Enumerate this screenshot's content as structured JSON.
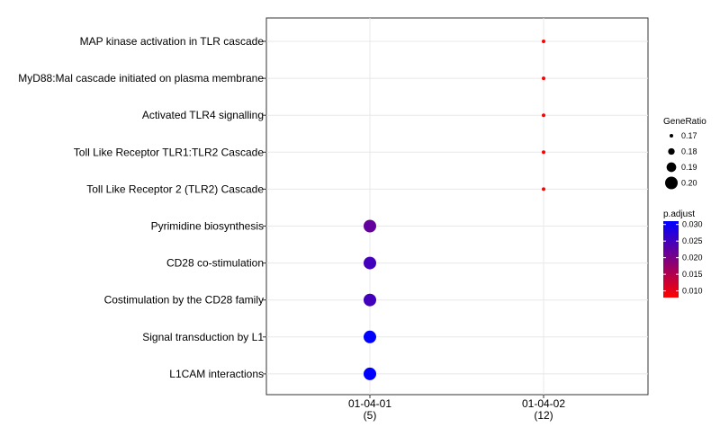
{
  "chart_data": {
    "type": "scatter",
    "title": "",
    "xlabel": "",
    "ylabel": "",
    "x_categories": [
      {
        "label": "01-04-01",
        "count": "(5)"
      },
      {
        "label": "01-04-02",
        "count": "(12)"
      }
    ],
    "y_categories": [
      "MAP kinase activation in TLR cascade",
      "MyD88:Mal cascade initiated on plasma membrane",
      "Activated TLR4 signalling",
      "Toll Like Receptor TLR1:TLR2 Cascade",
      "Toll Like Receptor 2 (TLR2) Cascade",
      "Pyrimidine biosynthesis",
      "CD28 co-stimulation",
      "Costimulation by the CD28 family",
      "Signal transduction by L1",
      "L1CAM interactions"
    ],
    "points": [
      {
        "x": "01-04-02",
        "y": "MAP kinase activation in TLR cascade",
        "gene_ratio": 0.17,
        "p_adjust": 0.008
      },
      {
        "x": "01-04-02",
        "y": "MyD88:Mal cascade initiated on plasma membrane",
        "gene_ratio": 0.17,
        "p_adjust": 0.008
      },
      {
        "x": "01-04-02",
        "y": "Activated TLR4 signalling",
        "gene_ratio": 0.17,
        "p_adjust": 0.008
      },
      {
        "x": "01-04-02",
        "y": "Toll Like Receptor TLR1:TLR2 Cascade",
        "gene_ratio": 0.17,
        "p_adjust": 0.008
      },
      {
        "x": "01-04-02",
        "y": "Toll Like Receptor 2 (TLR2) Cascade",
        "gene_ratio": 0.17,
        "p_adjust": 0.008
      },
      {
        "x": "01-04-01",
        "y": "Pyrimidine biosynthesis",
        "gene_ratio": 0.2,
        "p_adjust": 0.022
      },
      {
        "x": "01-04-01",
        "y": "CD28 co-stimulation",
        "gene_ratio": 0.2,
        "p_adjust": 0.025
      },
      {
        "x": "01-04-01",
        "y": "Costimulation by the CD28 family",
        "gene_ratio": 0.2,
        "p_adjust": 0.025
      },
      {
        "x": "01-04-01",
        "y": "Signal transduction by L1",
        "gene_ratio": 0.2,
        "p_adjust": 0.031
      },
      {
        "x": "01-04-01",
        "y": "L1CAM interactions",
        "gene_ratio": 0.2,
        "p_adjust": 0.031
      }
    ],
    "size_legend": {
      "title": "GeneRatio",
      "values": [
        0.17,
        0.18,
        0.19,
        0.2
      ],
      "labels": [
        "0.17",
        "0.18",
        "0.19",
        "0.20"
      ]
    },
    "color_legend": {
      "title": "p.adjust",
      "min": 0.008,
      "max": 0.031,
      "ticks": [
        0.03,
        0.025,
        0.02,
        0.015,
        0.01
      ],
      "labels": [
        "0.030",
        "0.025",
        "0.020",
        "0.015",
        "0.010"
      ],
      "low_color": "#ff0000",
      "high_color": "#0000ff"
    },
    "grid": true,
    "legend_position": "right"
  }
}
